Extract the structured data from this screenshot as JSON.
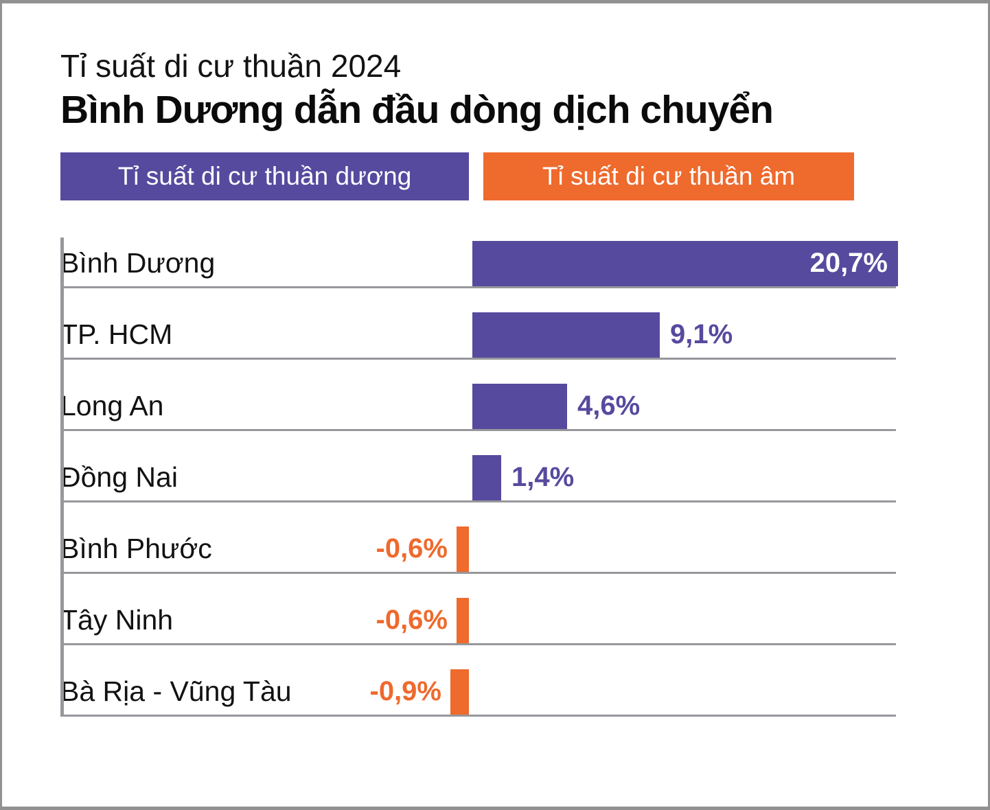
{
  "title": {
    "kicker": "Tỉ suất di cư thuần 2024",
    "headline": "Bình Dương dẫn đầu dòng dịch chuyển"
  },
  "legend": [
    {
      "label": "Tỉ suất di cư thuần dương",
      "color": "#564a9e"
    },
    {
      "label": "Tỉ suất di cư thuần âm",
      "color": "#ee6a2d"
    }
  ],
  "colors": {
    "positive_bar": "#564a9e",
    "negative_bar": "#ee6a2d",
    "positive_value_text": "#564a9e",
    "negative_value_text": "#ee6a2d",
    "value_inside_text": "#ffffff",
    "grid_line": "#97979c",
    "frame_border": "#919191",
    "text": "#121212"
  },
  "chart_data": {
    "type": "bar",
    "orientation": "horizontal",
    "title": "Bình Dương dẫn đầu dòng dịch chuyển",
    "subtitle": "Tỉ suất di cư thuần 2024",
    "categories": [
      "Bình Dương",
      "TP. HCM",
      "Long An",
      "Đồng Nai",
      "Bình Phước",
      "Tây Ninh",
      "Bà Rịa - Vũng Tàu"
    ],
    "values": [
      20.7,
      9.1,
      4.6,
      1.4,
      -0.6,
      -0.6,
      -0.9
    ],
    "value_labels": [
      "20,7%",
      "9,1%",
      "4,6%",
      "1,4%",
      "-0,6%",
      "-0,6%",
      "-0,9%"
    ],
    "unit": "%",
    "xlim": [
      -3,
      20.7
    ],
    "baseline": 0,
    "grid": "row-separators",
    "legend_position": "top",
    "series": [
      {
        "name": "Tỉ suất di cư thuần dương",
        "rule": "values >= 0"
      },
      {
        "name": "Tỉ suất di cư thuần âm",
        "rule": "values < 0"
      }
    ]
  }
}
